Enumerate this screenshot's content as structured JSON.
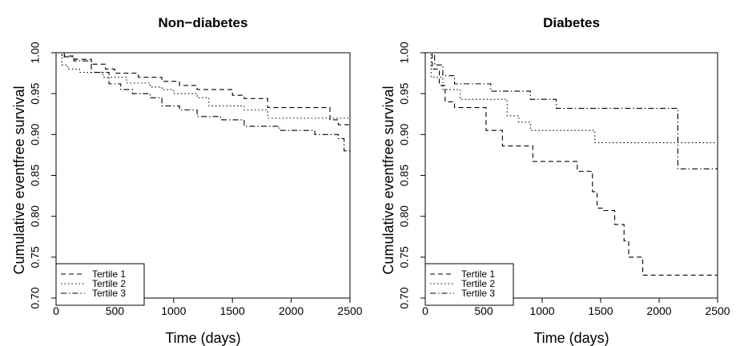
{
  "chart_data": [
    {
      "type": "line",
      "title": "Non−diabetes",
      "xlabel": "Time (days)",
      "ylabel": "Cumulative eventfree survival",
      "xlim": [
        0,
        2500
      ],
      "ylim": [
        0.7,
        1.0
      ],
      "xticks": [
        0,
        500,
        1000,
        1500,
        2000,
        2500
      ],
      "xtick_labels": [
        "0",
        "500",
        "1000",
        "1500",
        "2000",
        "2500"
      ],
      "yticks": [
        0.7,
        0.75,
        0.8,
        0.85,
        0.9,
        0.95,
        1.0
      ],
      "ytick_labels": [
        "0.70",
        "0.75",
        "0.80",
        "0.85",
        "0.90",
        "0.95",
        "1.00"
      ],
      "legend_position": "bottom-left",
      "grid": false,
      "series": [
        {
          "name": "Tertile 1",
          "dash": "dashed",
          "x": [
            0,
            70,
            160,
            300,
            420,
            500,
            700,
            900,
            1050,
            1200,
            1500,
            1600,
            1800,
            2330,
            2400,
            2500
          ],
          "y": [
            1.0,
            0.996,
            0.992,
            0.986,
            0.98,
            0.975,
            0.97,
            0.965,
            0.96,
            0.955,
            0.948,
            0.944,
            0.933,
            0.918,
            0.912,
            0.912
          ]
        },
        {
          "name": "Tertile 2",
          "dash": "dotted",
          "x": [
            0,
            50,
            100,
            200,
            400,
            600,
            800,
            900,
            1000,
            1200,
            1300,
            1600,
            1800,
            2000,
            2330,
            2500
          ],
          "y": [
            1.0,
            0.985,
            0.98,
            0.976,
            0.97,
            0.963,
            0.958,
            0.955,
            0.95,
            0.945,
            0.935,
            0.93,
            0.92,
            0.92,
            0.92,
            0.92
          ]
        },
        {
          "name": "Tertile 3",
          "dash": "dashdot",
          "x": [
            0,
            50,
            150,
            300,
            450,
            550,
            650,
            800,
            900,
            1050,
            1200,
            1400,
            1600,
            1900,
            2200,
            2400,
            2450,
            2500
          ],
          "y": [
            1.0,
            0.995,
            0.99,
            0.976,
            0.962,
            0.955,
            0.95,
            0.945,
            0.935,
            0.93,
            0.922,
            0.918,
            0.91,
            0.905,
            0.9,
            0.895,
            0.88,
            0.88
          ]
        }
      ]
    },
    {
      "type": "line",
      "title": "Diabetes",
      "xlabel": "Time (days)",
      "ylabel": "Cumulative eventfree survival",
      "xlim": [
        0,
        2500
      ],
      "ylim": [
        0.7,
        1.0
      ],
      "xticks": [
        0,
        500,
        1000,
        1500,
        2000,
        2500
      ],
      "xtick_labels": [
        "0",
        "500",
        "1000",
        "1500",
        "2000",
        "2500"
      ],
      "yticks": [
        0.7,
        0.75,
        0.8,
        0.85,
        0.9,
        0.95,
        1.0
      ],
      "ytick_labels": [
        "0.70",
        "0.75",
        "0.80",
        "0.85",
        "0.90",
        "0.95",
        "1.00"
      ],
      "legend_position": "bottom-left",
      "grid": false,
      "series": [
        {
          "name": "Tertile 1",
          "dash": "dashed",
          "x": [
            0,
            60,
            120,
            170,
            250,
            520,
            660,
            920,
            1300,
            1430,
            1470,
            1520,
            1620,
            1700,
            1740,
            1860,
            2500
          ],
          "y": [
            1.0,
            0.98,
            0.96,
            0.94,
            0.933,
            0.905,
            0.886,
            0.867,
            0.855,
            0.83,
            0.81,
            0.807,
            0.79,
            0.77,
            0.75,
            0.728,
            0.728
          ]
        },
        {
          "name": "Tertile 2",
          "dash": "dotted",
          "x": [
            0,
            50,
            150,
            300,
            700,
            800,
            900,
            1450,
            2500
          ],
          "y": [
            1.0,
            0.97,
            0.955,
            0.943,
            0.923,
            0.915,
            0.905,
            0.89,
            0.89
          ]
        },
        {
          "name": "Tertile 3",
          "dash": "dashdot",
          "x": [
            0,
            80,
            150,
            250,
            560,
            900,
            1120,
            2140,
            2160,
            2500
          ],
          "y": [
            1.0,
            0.985,
            0.972,
            0.962,
            0.953,
            0.943,
            0.932,
            0.932,
            0.858,
            0.858
          ]
        }
      ]
    }
  ]
}
